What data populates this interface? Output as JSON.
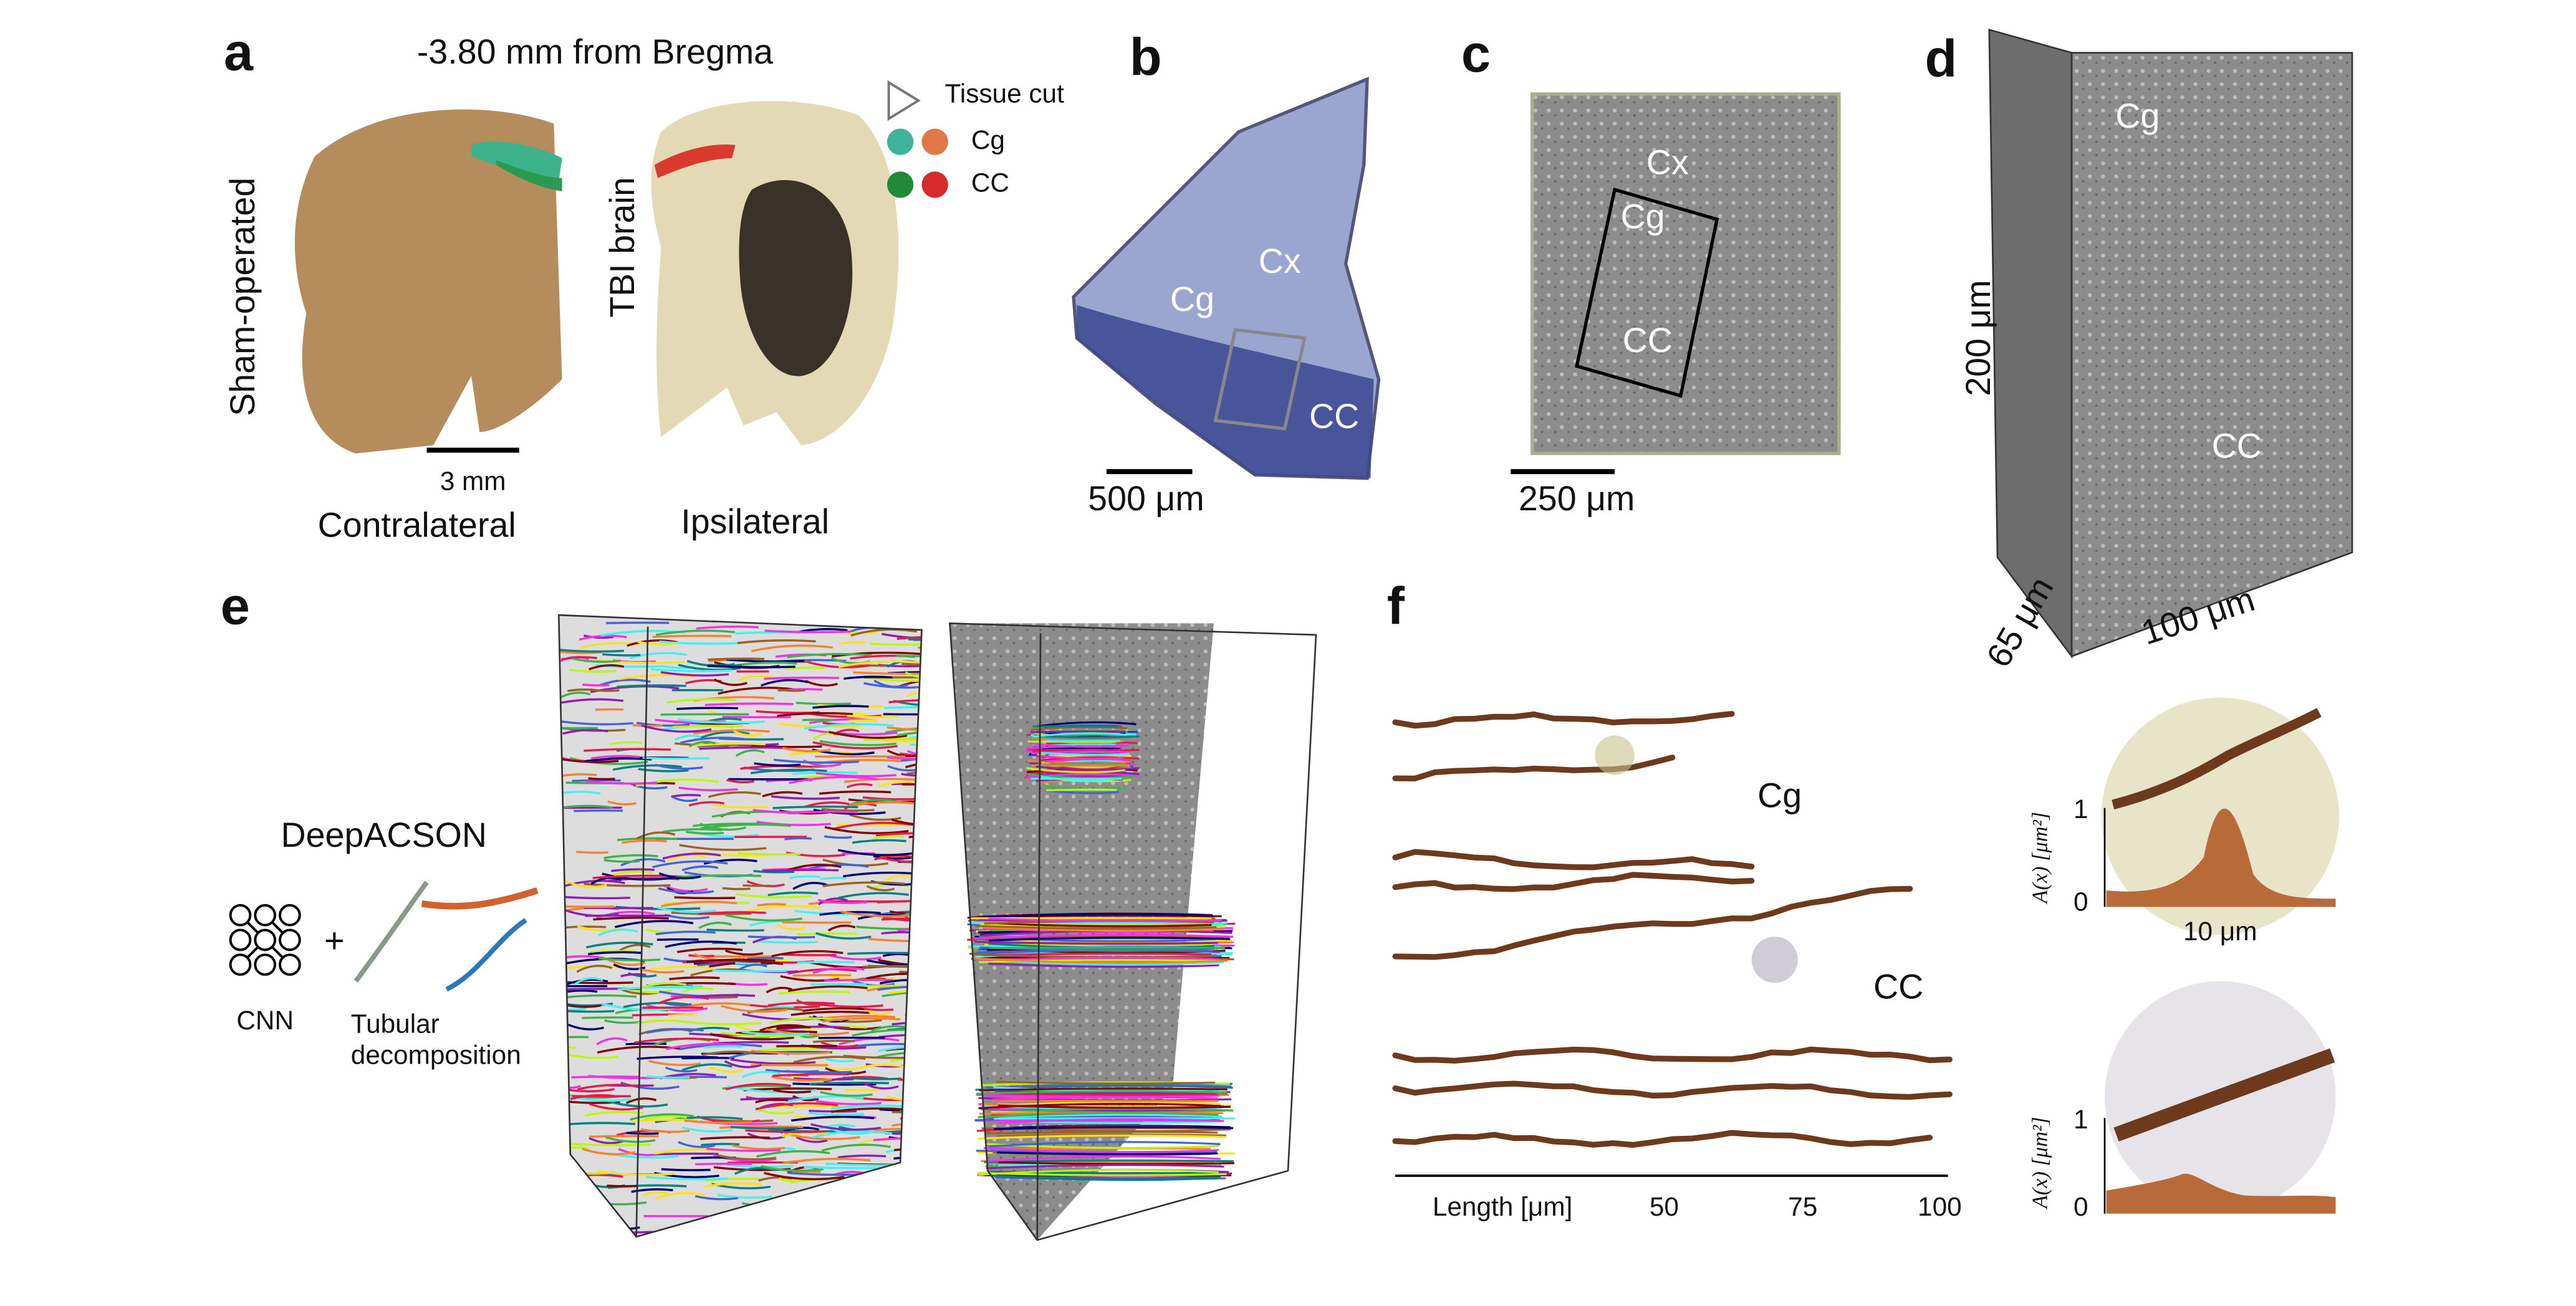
{
  "panels": {
    "a": {
      "letter": "a",
      "title": "-3.80 mm from Bregma",
      "left_label": "Sham-operated",
      "right_label": "TBI brain",
      "scale_bar": "3 mm",
      "left_caption": "Contralateral",
      "right_caption": "Ipsilateral",
      "legend": [
        "Tissue cut",
        "Cg",
        "CC"
      ]
    },
    "b": {
      "letter": "b",
      "regions": [
        "Cx",
        "Cg",
        "CC"
      ],
      "scale_bar": "500 μm"
    },
    "c": {
      "letter": "c",
      "regions": [
        "Cx",
        "Cg",
        "CC"
      ],
      "scale_bar": "250 μm"
    },
    "d": {
      "letter": "d",
      "regions": [
        "Cg",
        "CC"
      ],
      "dims": [
        "200 μm",
        "65 μm",
        "100 μm"
      ]
    },
    "e": {
      "letter": "e",
      "method": "DeepACSON",
      "cnn": "CNN",
      "tubular": [
        "Tubular",
        "decomposition"
      ]
    },
    "f": {
      "letter": "f",
      "groups": [
        "Cg",
        "CC"
      ],
      "x_label": "Length [μm]",
      "x_ticks": [
        50,
        75,
        100
      ],
      "insets": [
        {
          "y_label": "A(x) [μm²]",
          "y_ticks": [
            0,
            1
          ],
          "scale_bar": "10 μm"
        },
        {
          "y_label": "A(x) [μm²]",
          "y_ticks": [
            0,
            1
          ]
        }
      ]
    }
  }
}
